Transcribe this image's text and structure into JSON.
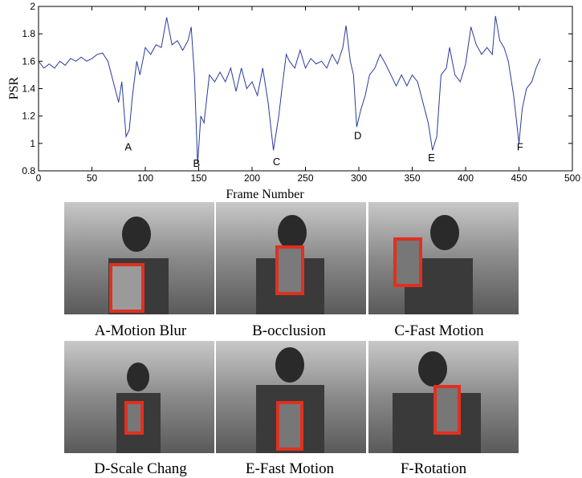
{
  "chart_data": {
    "type": "line",
    "xlabel": "Frame Number",
    "ylabel": "PSR",
    "xlim": [
      0,
      500
    ],
    "ylim": [
      0.8,
      2
    ],
    "xticks": [
      0,
      50,
      100,
      150,
      200,
      250,
      300,
      350,
      400,
      450,
      500
    ],
    "yticks": [
      0.8,
      1,
      1.2,
      1.4,
      1.6,
      1.8,
      2
    ],
    "color": "#2b3aa0",
    "x": [
      0,
      5,
      10,
      15,
      20,
      25,
      30,
      35,
      40,
      45,
      50,
      55,
      60,
      65,
      70,
      75,
      78,
      82,
      85,
      88,
      92,
      95,
      100,
      105,
      110,
      115,
      120,
      125,
      130,
      135,
      140,
      143,
      146,
      149,
      152,
      155,
      160,
      165,
      170,
      175,
      180,
      185,
      190,
      195,
      200,
      205,
      210,
      215,
      220,
      225,
      228,
      232,
      235,
      240,
      245,
      250,
      255,
      260,
      265,
      270,
      275,
      280,
      285,
      288,
      292,
      295,
      298,
      302,
      306,
      310,
      315,
      320,
      325,
      330,
      335,
      340,
      345,
      350,
      355,
      360,
      365,
      369,
      373,
      377,
      382,
      385,
      390,
      395,
      400,
      405,
      410,
      415,
      420,
      425,
      428,
      432,
      436,
      440,
      445,
      450,
      453,
      457,
      462,
      466,
      470
    ],
    "values": [
      1.6,
      1.55,
      1.58,
      1.55,
      1.6,
      1.57,
      1.62,
      1.6,
      1.63,
      1.6,
      1.62,
      1.65,
      1.66,
      1.6,
      1.45,
      1.3,
      1.45,
      1.05,
      1.1,
      1.35,
      1.6,
      1.5,
      1.7,
      1.65,
      1.72,
      1.7,
      1.92,
      1.72,
      1.75,
      1.68,
      1.75,
      1.85,
      1.5,
      0.85,
      1.2,
      1.15,
      1.5,
      1.45,
      1.52,
      1.45,
      1.55,
      1.38,
      1.55,
      1.4,
      1.45,
      1.35,
      1.55,
      1.3,
      0.95,
      1.2,
      1.4,
      1.65,
      1.6,
      1.55,
      1.68,
      1.55,
      1.62,
      1.58,
      1.6,
      1.55,
      1.65,
      1.58,
      1.7,
      1.86,
      1.6,
      1.5,
      1.12,
      1.25,
      1.35,
      1.5,
      1.55,
      1.65,
      1.58,
      1.5,
      1.42,
      1.5,
      1.42,
      1.5,
      1.45,
      1.3,
      1.15,
      0.95,
      1.05,
      1.5,
      1.55,
      1.7,
      1.5,
      1.45,
      1.58,
      1.85,
      1.72,
      1.65,
      1.7,
      1.65,
      1.93,
      1.75,
      1.7,
      1.6,
      1.35,
      1.0,
      1.25,
      1.4,
      1.45,
      1.55,
      1.62
    ],
    "annotations": [
      {
        "text": "A",
        "x": 84,
        "y": 0.98
      },
      {
        "text": "B",
        "x": 148,
        "y": 0.86
      },
      {
        "text": "C",
        "x": 223,
        "y": 0.87
      },
      {
        "text": "D",
        "x": 299,
        "y": 1.06
      },
      {
        "text": "E",
        "x": 368,
        "y": 0.9
      },
      {
        "text": "F",
        "x": 451,
        "y": 0.98
      }
    ]
  },
  "panels": [
    {
      "caption": "A-Motion Blur"
    },
    {
      "caption": "B-occlusion"
    },
    {
      "caption": "C-Fast Motion"
    },
    {
      "caption": "D-Scale Chang"
    },
    {
      "caption": "E-Fast Motion"
    },
    {
      "caption": "F-Rotation"
    }
  ]
}
